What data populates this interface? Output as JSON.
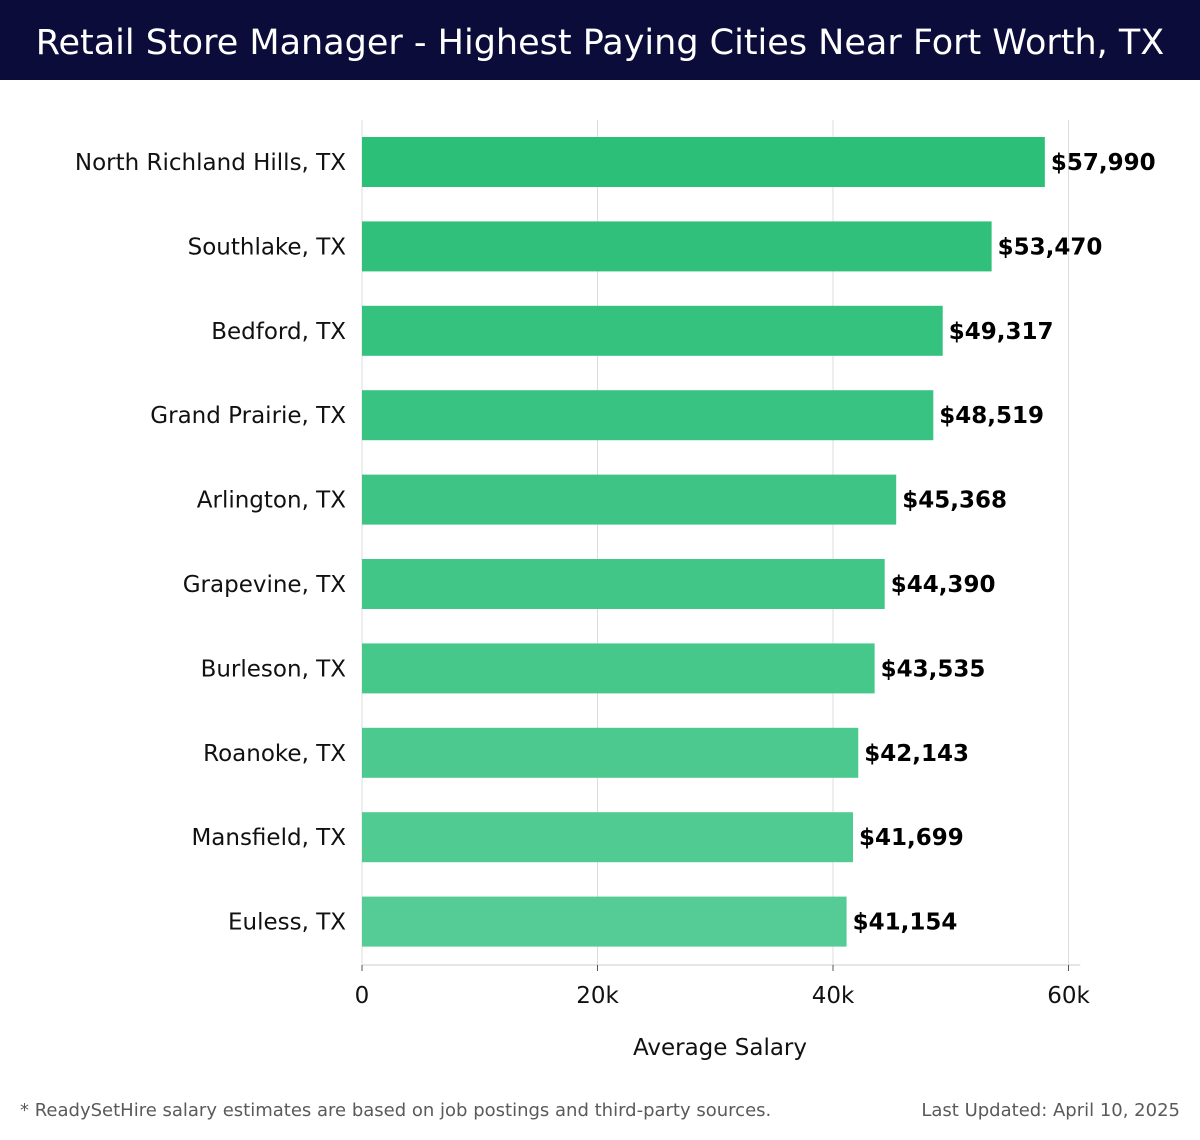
{
  "header": {
    "title": "Retail Store Manager - Highest Paying Cities Near Fort Worth, TX",
    "background_color": "#0c0c3a"
  },
  "chart_data": {
    "type": "bar",
    "orientation": "horizontal",
    "title": "Retail Store Manager - Highest Paying Cities Near Fort Worth, TX",
    "xlabel": "Average Salary",
    "ylabel": "",
    "categories": [
      "North Richland Hills, TX",
      "Southlake, TX",
      "Bedford, TX",
      "Grand Prairie, TX",
      "Arlington, TX",
      "Grapevine, TX",
      "Burleson, TX",
      "Roanoke, TX",
      "Mansfield, TX",
      "Euless, TX"
    ],
    "values": [
      57990,
      53470,
      49317,
      48519,
      45368,
      44390,
      43535,
      42143,
      41699,
      41154
    ],
    "value_labels": [
      "$57,990",
      "$53,470",
      "$49,317",
      "$48,519",
      "$45,368",
      "$44,390",
      "$43,535",
      "$42,143",
      "$41,699",
      "$41,154"
    ],
    "xlim": [
      0,
      61000
    ],
    "xticks": [
      0,
      20000,
      40000,
      60000
    ],
    "xtick_labels": [
      "0",
      "20k",
      "40k",
      "60k"
    ],
    "grid": true,
    "bar_color_top": "#2bbf78",
    "bar_color_bottom": "#55cc95"
  },
  "footer": {
    "note": "* ReadySetHire salary estimates are based on job postings and third-party sources.",
    "updated": "Last Updated: April 10, 2025"
  }
}
